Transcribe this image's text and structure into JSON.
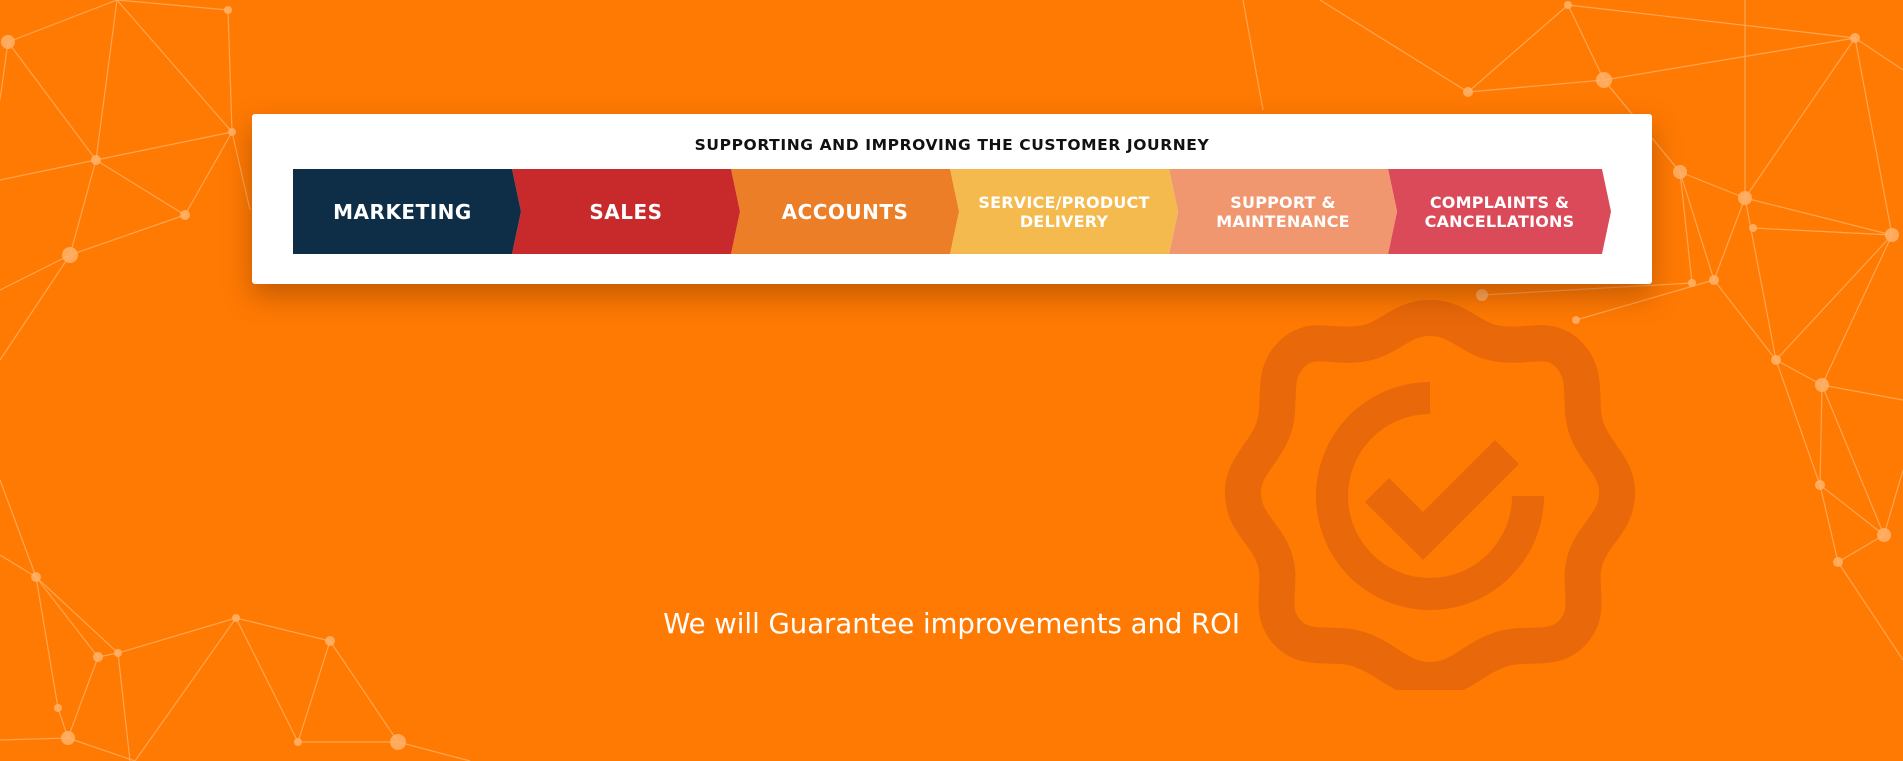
{
  "journey": {
    "title": "SUPPORTING AND IMPROVING THE CUSTOMER JOURNEY",
    "stages": [
      {
        "label": "MARKETING",
        "color": "#0E2E47"
      },
      {
        "label": "SALES",
        "color": "#C8292A"
      },
      {
        "label": "ACCOUNTS",
        "color": "#EB7E26"
      },
      {
        "label": "SERVICE/PRODUCT\nDELIVERY",
        "color": "#F4BA4E"
      },
      {
        "label": "SUPPORT &\nMAINTENANCE",
        "color": "#F09770"
      },
      {
        "label": "COMPLAINTS &\nCANCELLATIONS",
        "color": "#DB4A59"
      }
    ]
  },
  "tagline": "We will Guarantee improvements and ROI",
  "colors": {
    "background": "#FF7A03",
    "badge": "#E8680A",
    "network_line": "#FFB36B"
  }
}
